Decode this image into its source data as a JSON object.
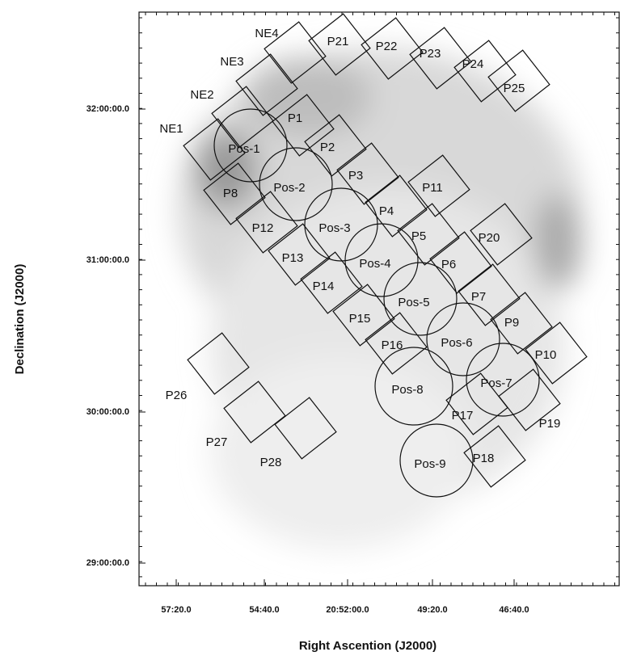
{
  "y_axis": {
    "label": "Declination (J2000)",
    "ticks": [
      "32:00:00.0",
      "31:00:00.0",
      "30:00:00.0",
      "29:00:00.0"
    ]
  },
  "x_axis": {
    "label": "Right Ascention (J2000)",
    "ticks": [
      "57:20.0",
      "54:40.0",
      "20:52:00.0",
      "49:20.0",
      "46:40.0"
    ]
  },
  "fields": [
    "NE4",
    "NE3",
    "NE2",
    "NE1",
    "P21",
    "P22",
    "P23",
    "P24",
    "P25",
    "P1",
    "P2",
    "P3",
    "P4",
    "P5",
    "P6",
    "P7",
    "P9",
    "P10",
    "P19",
    "P8",
    "P12",
    "P13",
    "P14",
    "P15",
    "P16",
    "P17",
    "P18",
    "P11",
    "P20",
    "P26",
    "P27",
    "P28"
  ],
  "positions": [
    "Pos-1",
    "Pos-2",
    "Pos-3",
    "Pos-4",
    "Pos-5",
    "Pos-6",
    "Pos-7",
    "Pos-8",
    "Pos-9"
  ]
}
